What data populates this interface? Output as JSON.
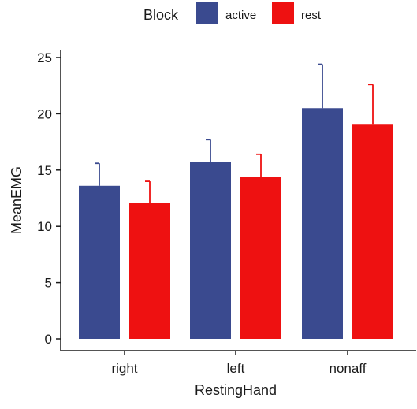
{
  "chart_data": {
    "type": "bar",
    "xlabel": "RestingHand",
    "ylabel": "MeanEMG",
    "categories": [
      "right",
      "left",
      "nonaff"
    ],
    "ylim": [
      0,
      25
    ],
    "yticks": [
      0,
      5,
      10,
      15,
      20,
      25
    ],
    "grid": false,
    "legend": {
      "title": "Block",
      "position": "top"
    },
    "series": [
      {
        "name": "active",
        "color": "#3a4a8f",
        "values": [
          13.6,
          15.7,
          20.5
        ],
        "error_upper": [
          15.6,
          17.7,
          24.4
        ]
      },
      {
        "name": "rest",
        "color": "#ee1111",
        "values": [
          12.1,
          14.4,
          19.1
        ],
        "error_upper": [
          14.0,
          16.4,
          22.6
        ]
      }
    ]
  }
}
